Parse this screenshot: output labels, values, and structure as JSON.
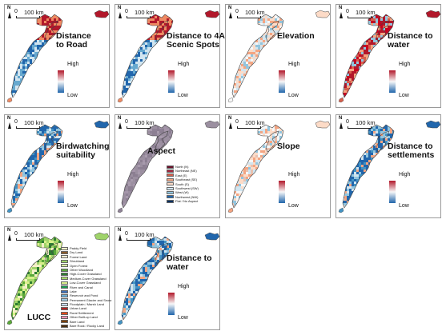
{
  "scale_zero": "0",
  "scale_label": "100 km",
  "north_label": "N",
  "ramp_high": "High",
  "ramp_low": "Low",
  "colors": {
    "diverging_high": "#b2182b",
    "diverging_mid": "#f7f7f7",
    "diverging_low": "#2166ac",
    "border": "#9a9a9a",
    "aspect_fill": "#9b8fa0"
  },
  "panels": [
    {
      "id": "distance-to-road",
      "title_lines": [
        "Distance",
        "to Road"
      ],
      "style": "ramp",
      "dominant": "mixed-red-top"
    },
    {
      "id": "distance-to-4a-scenic",
      "title_lines": [
        "Distance to 4A",
        "Scenic Spots"
      ],
      "style": "ramp",
      "dominant": "mixed-red-top"
    },
    {
      "id": "elevation",
      "title_lines": [
        "Elevation"
      ],
      "style": "ramp",
      "dominant": "light"
    },
    {
      "id": "distance-to-water-1",
      "title_lines": [
        "Distance to",
        "water"
      ],
      "style": "ramp",
      "dominant": "red"
    },
    {
      "id": "birdwatching-suitability",
      "title_lines": [
        "Birdwatching",
        "suitability"
      ],
      "style": "ramp",
      "dominant": "blue"
    },
    {
      "id": "aspect",
      "title_lines": [
        "Aspect"
      ],
      "style": "aspect",
      "dominant": "purple"
    },
    {
      "id": "slope",
      "title_lines": [
        "Slope"
      ],
      "style": "ramp",
      "dominant": "light-red"
    },
    {
      "id": "distance-to-settlements",
      "title_lines": [
        "Distance to",
        "settlements"
      ],
      "style": "ramp",
      "dominant": "blue"
    },
    {
      "id": "lucc",
      "title_lines": [
        "LUCC"
      ],
      "style": "lucc",
      "dominant": "green"
    },
    {
      "id": "distance-to-water-2",
      "title_lines": [
        "Distance to",
        "water"
      ],
      "style": "ramp",
      "dominant": "blue"
    }
  ],
  "aspect_legend": [
    {
      "label": "North (N)",
      "color": "#6b0f2a"
    },
    {
      "label": "Northeast (NE)",
      "color": "#a5243d"
    },
    {
      "label": "East (E)",
      "color": "#d6604d"
    },
    {
      "label": "Southeast (SE)",
      "color": "#f4a582"
    },
    {
      "label": "South (S)",
      "color": "#fddbc7"
    },
    {
      "label": "Southwest (SW)",
      "color": "#d1e5f0"
    },
    {
      "label": "West (W)",
      "color": "#92c5de"
    },
    {
      "label": "Northwest (NW)",
      "color": "#2166ac"
    },
    {
      "label": "Flat / No Aspect",
      "color": "#053061"
    }
  ],
  "lucc_legend": [
    {
      "label": "Paddy Field",
      "color": "#f5f0c8"
    },
    {
      "label": "Dry Land",
      "color": "#8a5a2b"
    },
    {
      "label": "Forest Land",
      "color": "#f2ead0"
    },
    {
      "label": "Shrubland",
      "color": "#9fd36a"
    },
    {
      "label": "Open Forest",
      "color": "#d9f0a3"
    },
    {
      "label": "Other Woodland",
      "color": "#5aa83a"
    },
    {
      "label": "High-Cover Grassland",
      "color": "#2e7d32"
    },
    {
      "label": "Medium-Cover Grassland",
      "color": "#a6d96a"
    },
    {
      "label": "Low-Cover Grassland",
      "color": "#d9ef8b"
    },
    {
      "label": "River and Canal",
      "color": "#1a9850"
    },
    {
      "label": "Lake",
      "color": "#3f6fb6"
    },
    {
      "label": "Reservoir and Pond",
      "color": "#6baed6"
    },
    {
      "label": "Permanent Glacier and Snow",
      "color": "#9ecae1"
    },
    {
      "label": "Floodplain / Marsh Land",
      "color": "#c6dbef"
    },
    {
      "label": "Urban Land",
      "color": "#b22222"
    },
    {
      "label": "Rural Settlement",
      "color": "#e64a19"
    },
    {
      "label": "Other Built-up Land",
      "color": "#f48fb1"
    },
    {
      "label": "Bare Land",
      "color": "#7b3f00"
    },
    {
      "label": "Bare Rock / Rocky Land",
      "color": "#4a2c0f"
    }
  ]
}
